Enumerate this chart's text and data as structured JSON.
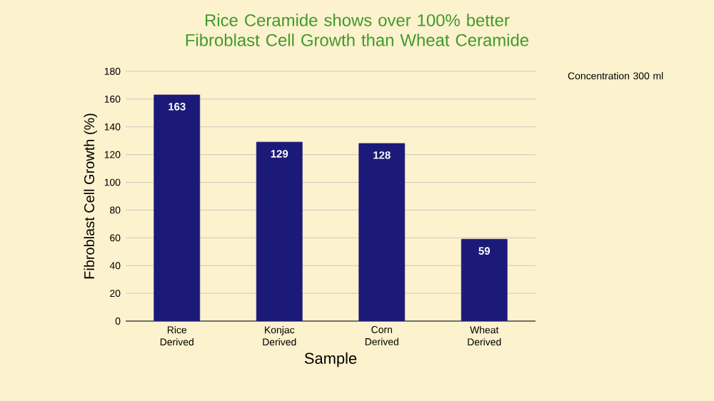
{
  "chart_data": {
    "type": "bar",
    "title": "Rice Ceramide shows over 100% better Fibroblast Cell Growth than Wheat Ceramide",
    "xlabel": "Sample",
    "ylabel": "Fibroblast Cell Growth (%)",
    "annotations": [
      "Concentration 300 ml"
    ],
    "categories": [
      "Rice Derived",
      "Konjac Derived",
      "Corn Derived",
      "Wheat Derived"
    ],
    "values": [
      163,
      129,
      128,
      59
    ],
    "color": "#1c1a78",
    "ylim": [
      0,
      180
    ],
    "yticks": [
      0,
      20,
      40,
      60,
      80,
      100,
      120,
      140,
      160,
      180
    ],
    "grid": "y",
    "data_labels": true
  }
}
